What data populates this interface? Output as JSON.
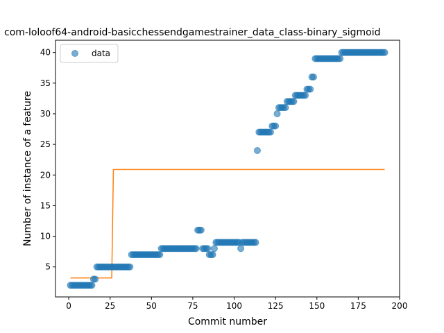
{
  "chart_data": {
    "type": "scatter",
    "title": "com-loloof64-android-basicchessendgamestrainer_data_class-binary_sigmoid",
    "xlabel": "Commit number",
    "ylabel": "Number of instance of a feature",
    "xlim": [
      -8,
      200
    ],
    "ylim": [
      0.1,
      42
    ],
    "xticks": [
      0,
      25,
      50,
      75,
      100,
      125,
      150,
      175,
      200
    ],
    "yticks": [
      5,
      10,
      15,
      20,
      25,
      30,
      35,
      40
    ],
    "grid": false,
    "legend": {
      "position": "top-left",
      "entries": [
        "data"
      ]
    },
    "series": [
      {
        "name": "data",
        "kind": "scatter",
        "color": "#1f77b4",
        "x": [
          1,
          2,
          3,
          4,
          5,
          6,
          7,
          8,
          9,
          10,
          11,
          12,
          13,
          14,
          15,
          16,
          17,
          18,
          19,
          20,
          21,
          22,
          23,
          24,
          25,
          26,
          27,
          28,
          29,
          30,
          31,
          32,
          33,
          34,
          35,
          36,
          37,
          38,
          39,
          40,
          41,
          42,
          43,
          44,
          45,
          46,
          47,
          48,
          49,
          50,
          51,
          52,
          53,
          54,
          55,
          56,
          57,
          58,
          59,
          60,
          61,
          62,
          63,
          64,
          65,
          66,
          67,
          68,
          69,
          70,
          71,
          72,
          73,
          74,
          75,
          76,
          77,
          78,
          79,
          80,
          81,
          82,
          83,
          84,
          85,
          86,
          87,
          88,
          89,
          90,
          91,
          92,
          93,
          94,
          95,
          96,
          97,
          98,
          99,
          100,
          101,
          102,
          103,
          104,
          105,
          106,
          107,
          108,
          109,
          110,
          111,
          112,
          113,
          114,
          115,
          116,
          117,
          118,
          119,
          120,
          121,
          122,
          123,
          124,
          125,
          126,
          127,
          128,
          129,
          130,
          131,
          132,
          133,
          134,
          135,
          136,
          137,
          138,
          139,
          140,
          141,
          142,
          143,
          144,
          145,
          146,
          147,
          148,
          149,
          150,
          151,
          152,
          153,
          154,
          155,
          156,
          157,
          158,
          159,
          160,
          161,
          162,
          163,
          164,
          165,
          166,
          167,
          168,
          169,
          170,
          171,
          172,
          173,
          174,
          175,
          176,
          177,
          178,
          179,
          180,
          181,
          182,
          183,
          184,
          185,
          186,
          187,
          188,
          189,
          190,
          191
        ],
        "y": [
          2,
          2,
          2,
          2,
          2,
          2,
          2,
          2,
          2,
          2,
          2,
          2,
          2,
          2,
          3,
          3,
          5,
          5,
          5,
          5,
          5,
          5,
          5,
          5,
          5,
          5,
          5,
          5,
          5,
          5,
          5,
          5,
          5,
          5,
          5,
          5,
          5,
          7,
          7,
          7,
          7,
          7,
          7,
          7,
          7,
          7,
          7,
          7,
          7,
          7,
          7,
          7,
          7,
          7,
          7,
          8,
          8,
          8,
          8,
          8,
          8,
          8,
          8,
          8,
          8,
          8,
          8,
          8,
          8,
          8,
          8,
          8,
          8,
          8,
          8,
          8,
          8,
          11,
          11,
          11,
          8,
          8,
          8,
          8,
          7,
          7,
          7,
          8,
          9,
          9,
          9,
          9,
          9,
          9,
          9,
          9,
          9,
          9,
          9,
          9,
          9,
          9,
          9,
          8,
          9,
          9,
          9,
          9,
          9,
          9,
          9,
          9,
          9,
          24,
          27,
          27,
          27,
          27,
          27,
          27,
          27,
          27,
          28,
          28,
          28,
          30,
          31,
          31,
          31,
          31,
          31,
          32,
          32,
          32,
          32,
          32,
          33,
          33,
          33,
          33,
          33,
          33,
          33,
          34,
          34,
          34,
          36,
          36,
          39,
          39,
          39,
          39,
          39,
          39,
          39,
          39,
          39,
          39,
          39,
          39,
          39,
          39,
          39,
          39,
          40,
          40,
          40,
          40,
          40,
          40,
          40,
          40,
          40,
          40,
          40,
          40,
          40,
          40,
          40,
          40,
          40,
          40,
          40,
          40,
          40,
          40,
          40,
          40,
          40,
          40,
          40
        ]
      },
      {
        "kind": "line",
        "color": "#ff7f0e",
        "x": [
          1,
          26,
          27,
          191
        ],
        "y": [
          3.2,
          3.2,
          20.9,
          20.9
        ]
      }
    ]
  }
}
